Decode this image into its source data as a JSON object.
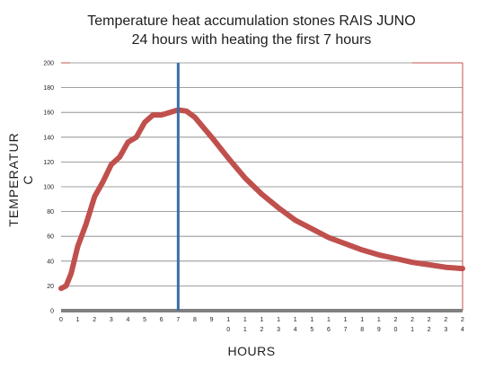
{
  "chart_data": {
    "type": "line",
    "title": "Temperature heat accumulation stones RAIS JUNO",
    "subtitle": "24 hours with heating the first 7 hours",
    "xlabel": "HOURS",
    "ylabel": "TEMPERATUR C",
    "xlim": [
      0,
      24
    ],
    "ylim": [
      0,
      200
    ],
    "yticks": [
      0,
      20,
      40,
      60,
      80,
      100,
      120,
      140,
      160,
      180,
      200
    ],
    "xticks": [
      [
        "0",
        ""
      ],
      [
        "1",
        ""
      ],
      [
        "2",
        ""
      ],
      [
        "3",
        ""
      ],
      [
        "4",
        ""
      ],
      [
        "5",
        ""
      ],
      [
        "6",
        ""
      ],
      [
        "7",
        ""
      ],
      [
        "8",
        ""
      ],
      [
        "9",
        ""
      ],
      [
        "1",
        "0"
      ],
      [
        "1",
        "1"
      ],
      [
        "1",
        "2"
      ],
      [
        "1",
        "3"
      ],
      [
        "1",
        "4"
      ],
      [
        "1",
        "5"
      ],
      [
        "1",
        "6"
      ],
      [
        "1",
        "7"
      ],
      [
        "1",
        "8"
      ],
      [
        "1",
        "9"
      ],
      [
        "2",
        "0"
      ],
      [
        "2",
        "1"
      ],
      [
        "2",
        "2"
      ],
      [
        "2",
        "3"
      ],
      [
        "2",
        "4"
      ]
    ],
    "grid": true,
    "vline_x": 7,
    "series": [
      {
        "x": [
          0,
          0.3,
          0.6,
          1.0,
          1.5,
          2.0,
          2.5,
          3.0,
          3.5,
          4.0,
          4.5,
          5.0,
          5.5,
          6.0,
          6.5,
          7.0,
          7.5,
          8.0,
          8.5,
          9.0,
          10,
          11,
          12,
          13,
          14,
          15,
          16,
          17,
          18,
          19,
          20,
          21,
          22,
          23,
          24
        ],
        "values": [
          18,
          20,
          30,
          52,
          70,
          92,
          104,
          118,
          124,
          136,
          140,
          152,
          158,
          158,
          160,
          162,
          161,
          156,
          148,
          140,
          123,
          107,
          94,
          83,
          73,
          66,
          59,
          54,
          49,
          45,
          42,
          39,
          37,
          35,
          34
        ]
      }
    ]
  },
  "colors": {
    "line": "#c0504d",
    "vline": "#3a6fa6",
    "grid": "#808080",
    "frame": "#c0504d",
    "axis": "#808080"
  }
}
